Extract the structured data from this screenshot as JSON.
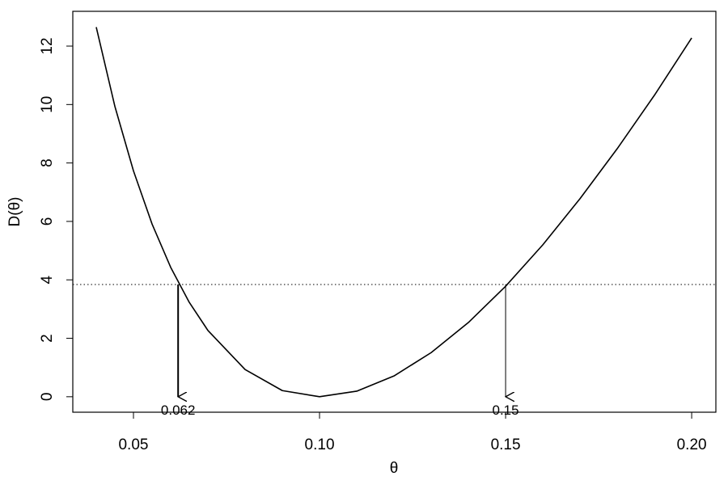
{
  "chart_data": {
    "type": "line",
    "x_label": "θ",
    "y_label": "D(θ)",
    "x": [
      0.04,
      0.045,
      0.05,
      0.055,
      0.06,
      0.065,
      0.07,
      0.08,
      0.09,
      0.1,
      0.11,
      0.12,
      0.13,
      0.14,
      0.15,
      0.16,
      0.17,
      0.18,
      0.19,
      0.2
    ],
    "series": [
      {
        "color": "#000000",
        "values": [
          12.65,
          9.94,
          7.73,
          5.91,
          4.43,
          3.23,
          2.27,
          0.93,
          0.21,
          0,
          0.19,
          0.71,
          1.51,
          2.54,
          3.78,
          5.2,
          6.78,
          8.49,
          10.32,
          12.28
        ]
      }
    ],
    "cutoff": 3.84,
    "annotations": [
      {
        "x": 0.062,
        "label": "0.062"
      },
      {
        "x": 0.15,
        "label": "0.15"
      }
    ],
    "xlim": [
      0.0337,
      0.2065
    ],
    "ylim": [
      -0.53,
      13.19
    ],
    "xticks": [
      0.05,
      {
        "value": 0.1,
        "label": "0.10"
      },
      0.15,
      {
        "value": 0.2,
        "label": "0.20"
      }
    ],
    "yticks": [
      0,
      2,
      4,
      6,
      8,
      10,
      12
    ]
  }
}
